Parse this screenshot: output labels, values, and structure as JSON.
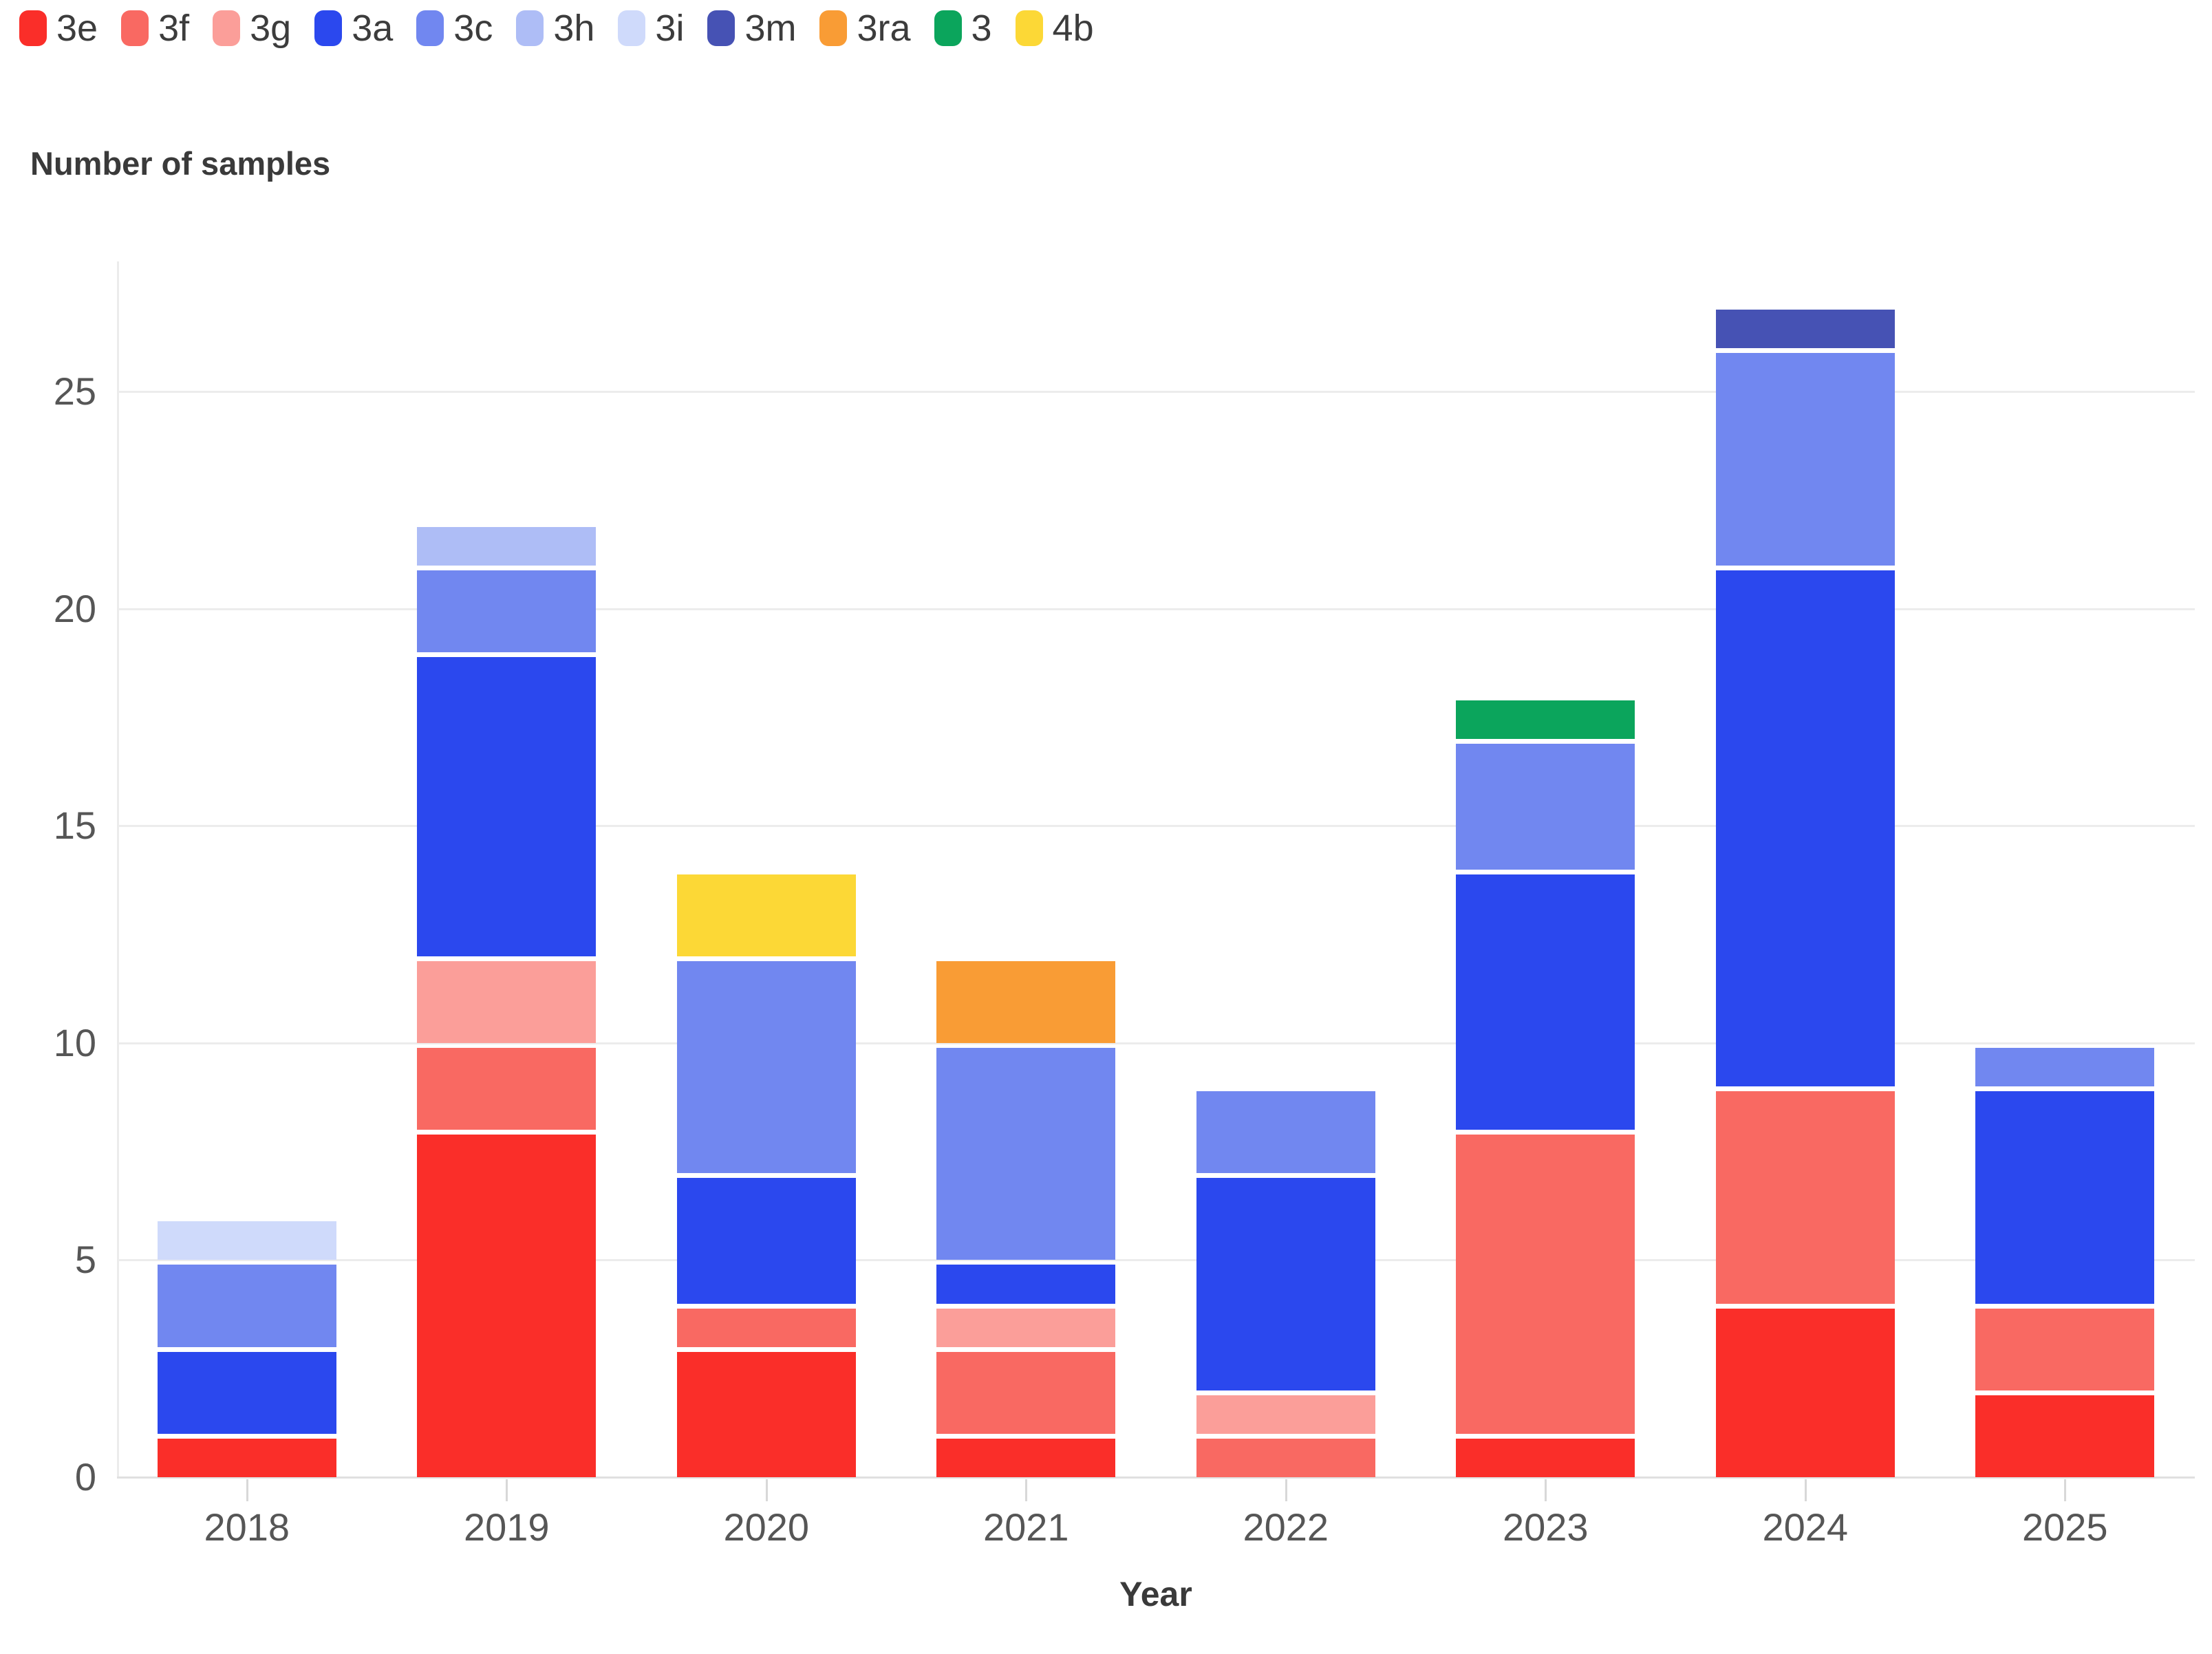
{
  "chart_data": {
    "type": "bar",
    "stacked": true,
    "title": "Number of samples",
    "xlabel": "Year",
    "categories": [
      "2018",
      "2019",
      "2020",
      "2021",
      "2022",
      "2023",
      "2024",
      "2025"
    ],
    "series": [
      {
        "name": "3e",
        "color": "#fa2e29",
        "values": [
          1,
          8,
          3,
          1,
          0,
          1,
          4,
          2
        ]
      },
      {
        "name": "3f",
        "color": "#f96962",
        "values": [
          0,
          2,
          1,
          2,
          1,
          7,
          5,
          2
        ]
      },
      {
        "name": "3g",
        "color": "#fb9e99",
        "values": [
          0,
          2,
          0,
          1,
          1,
          0,
          0,
          0
        ]
      },
      {
        "name": "3a",
        "color": "#2b48ee",
        "values": [
          2,
          7,
          3,
          1,
          5,
          6,
          12,
          5
        ]
      },
      {
        "name": "3c",
        "color": "#7187f0",
        "values": [
          2,
          2,
          5,
          5,
          2,
          3,
          5,
          1
        ]
      },
      {
        "name": "3h",
        "color": "#aebdf6",
        "values": [
          0,
          1,
          0,
          0,
          0,
          0,
          0,
          0
        ]
      },
      {
        "name": "3i",
        "color": "#cfdafb",
        "values": [
          1,
          0,
          0,
          0,
          0,
          0,
          0,
          0
        ]
      },
      {
        "name": "3m",
        "color": "#4652b4",
        "values": [
          0,
          0,
          0,
          0,
          0,
          0,
          1,
          0
        ]
      },
      {
        "name": "3ra",
        "color": "#f99c35",
        "values": [
          0,
          0,
          0,
          2,
          0,
          0,
          0,
          0
        ]
      },
      {
        "name": "3",
        "color": "#0ba55c",
        "values": [
          0,
          0,
          0,
          0,
          0,
          1,
          0,
          0
        ]
      },
      {
        "name": "4b",
        "color": "#fcd836",
        "values": [
          0,
          0,
          2,
          0,
          0,
          0,
          0,
          0
        ]
      }
    ],
    "y_ticks": [
      0,
      5,
      10,
      15,
      20,
      25
    ],
    "ylim": [
      0,
      28
    ],
    "grid": "horizontal",
    "legend_position": "top-left"
  }
}
